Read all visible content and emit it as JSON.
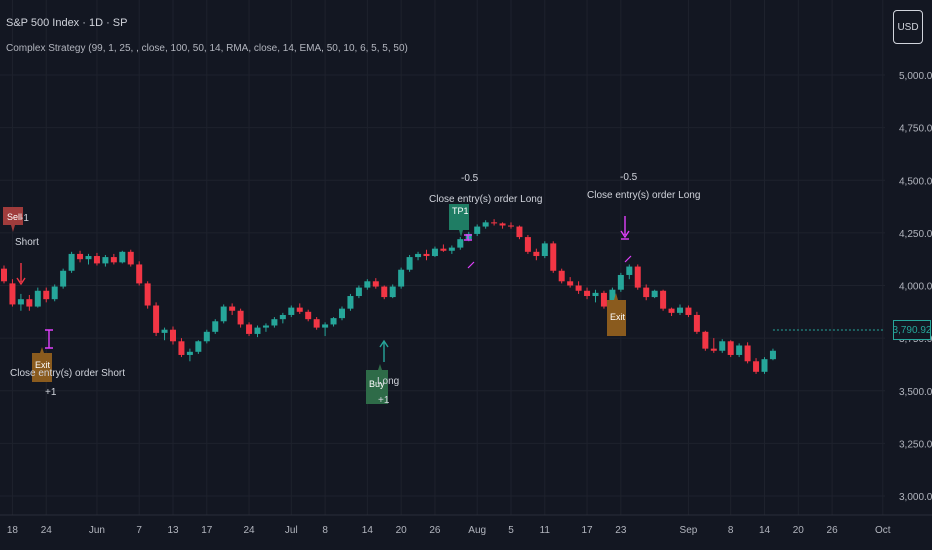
{
  "header": {
    "title": "S&P 500 Index · 1D · SP",
    "strategy": "Complex Strategy (99, 1, 25, , close, 100, 50, 14, RMA, close, 14, EMA, 50, 10, 6, 5, 5, 50)"
  },
  "currency_button": "USD",
  "last_price": "3,790.92",
  "colors": {
    "up": "#26a69a",
    "down": "#f23645",
    "background": "#131722",
    "grid": "#1e222d",
    "signal": "#e040fb"
  },
  "chart_data": {
    "type": "candlestick",
    "ylim": [
      2950,
      5300
    ],
    "y_ticks": [
      {
        "value": 3000,
        "label": "3,000.00"
      },
      {
        "value": 3250,
        "label": "3,250.00"
      },
      {
        "value": 3500,
        "label": "3,500.00"
      },
      {
        "value": 3750,
        "label": "3,750.00"
      },
      {
        "value": 4000,
        "label": "4,000.00"
      },
      {
        "value": 4250,
        "label": "4,250.00"
      },
      {
        "value": 4500,
        "label": "4,500.00"
      },
      {
        "value": 4750,
        "label": "4,750.00"
      },
      {
        "value": 5000,
        "label": "5,000.00"
      }
    ],
    "x_ticks": [
      {
        "index": 1,
        "label": "18"
      },
      {
        "index": 5,
        "label": "24"
      },
      {
        "index": 11,
        "label": "Jun"
      },
      {
        "index": 16,
        "label": "7"
      },
      {
        "index": 20,
        "label": "13"
      },
      {
        "index": 24,
        "label": "17"
      },
      {
        "index": 29,
        "label": "24"
      },
      {
        "index": 34,
        "label": "Jul"
      },
      {
        "index": 38,
        "label": "8"
      },
      {
        "index": 43,
        "label": "14"
      },
      {
        "index": 47,
        "label": "20"
      },
      {
        "index": 51,
        "label": "26"
      },
      {
        "index": 56,
        "label": "Aug"
      },
      {
        "index": 60,
        "label": "5"
      },
      {
        "index": 64,
        "label": "11"
      },
      {
        "index": 69,
        "label": "17"
      },
      {
        "index": 73,
        "label": "23"
      },
      {
        "index": 81,
        "label": "Sep"
      },
      {
        "index": 86,
        "label": "8"
      },
      {
        "index": 90,
        "label": "14"
      },
      {
        "index": 94,
        "label": "20"
      },
      {
        "index": 98,
        "label": "26"
      },
      {
        "index": 104,
        "label": "Oct"
      }
    ],
    "candles": [
      [
        4080,
        4095,
        4010,
        4020
      ],
      [
        4010,
        4030,
        3900,
        3910
      ],
      [
        3910,
        3960,
        3880,
        3935
      ],
      [
        3935,
        3955,
        3880,
        3900
      ],
      [
        3900,
        3990,
        3895,
        3975
      ],
      [
        3975,
        3990,
        3920,
        3935
      ],
      [
        3935,
        4005,
        3925,
        3995
      ],
      [
        3995,
        4080,
        3985,
        4070
      ],
      [
        4070,
        4160,
        4060,
        4150
      ],
      [
        4150,
        4165,
        4110,
        4125
      ],
      [
        4125,
        4150,
        4100,
        4140
      ],
      [
        4140,
        4155,
        4095,
        4105
      ],
      [
        4105,
        4145,
        4090,
        4135
      ],
      [
        4135,
        4150,
        4100,
        4110
      ],
      [
        4110,
        4165,
        4105,
        4160
      ],
      [
        4160,
        4170,
        4090,
        4100
      ],
      [
        4100,
        4115,
        4000,
        4010
      ],
      [
        4010,
        4020,
        3890,
        3905
      ],
      [
        3905,
        3920,
        3760,
        3775
      ],
      [
        3775,
        3800,
        3740,
        3790
      ],
      [
        3790,
        3805,
        3720,
        3735
      ],
      [
        3735,
        3750,
        3660,
        3670
      ],
      [
        3670,
        3700,
        3640,
        3685
      ],
      [
        3685,
        3740,
        3675,
        3735
      ],
      [
        3735,
        3790,
        3725,
        3780
      ],
      [
        3780,
        3840,
        3770,
        3830
      ],
      [
        3830,
        3910,
        3820,
        3900
      ],
      [
        3900,
        3915,
        3860,
        3880
      ],
      [
        3880,
        3890,
        3800,
        3815
      ],
      [
        3815,
        3825,
        3760,
        3770
      ],
      [
        3770,
        3810,
        3755,
        3800
      ],
      [
        3800,
        3820,
        3780,
        3810
      ],
      [
        3810,
        3850,
        3800,
        3840
      ],
      [
        3840,
        3870,
        3820,
        3860
      ],
      [
        3860,
        3905,
        3850,
        3895
      ],
      [
        3895,
        3915,
        3865,
        3875
      ],
      [
        3875,
        3885,
        3830,
        3840
      ],
      [
        3840,
        3850,
        3790,
        3800
      ],
      [
        3800,
        3825,
        3760,
        3815
      ],
      [
        3815,
        3850,
        3805,
        3845
      ],
      [
        3845,
        3900,
        3835,
        3890
      ],
      [
        3890,
        3960,
        3880,
        3950
      ],
      [
        3950,
        4000,
        3940,
        3990
      ],
      [
        3990,
        4030,
        3980,
        4020
      ],
      [
        4020,
        4035,
        3985,
        3995
      ],
      [
        3995,
        4000,
        3935,
        3945
      ],
      [
        3945,
        4005,
        3940,
        3995
      ],
      [
        3995,
        4085,
        3985,
        4075
      ],
      [
        4075,
        4145,
        4065,
        4135
      ],
      [
        4135,
        4160,
        4120,
        4150
      ],
      [
        4150,
        4170,
        4120,
        4140
      ],
      [
        4140,
        4185,
        4135,
        4175
      ],
      [
        4175,
        4195,
        4160,
        4165
      ],
      [
        4165,
        4190,
        4150,
        4180
      ],
      [
        4180,
        4230,
        4170,
        4220
      ],
      [
        4220,
        4255,
        4210,
        4245
      ],
      [
        4245,
        4290,
        4235,
        4280
      ],
      [
        4280,
        4310,
        4270,
        4300
      ],
      [
        4300,
        4315,
        4285,
        4295
      ],
      [
        4295,
        4300,
        4270,
        4285
      ],
      [
        4285,
        4300,
        4270,
        4280
      ],
      [
        4280,
        4285,
        4220,
        4230
      ],
      [
        4230,
        4240,
        4150,
        4160
      ],
      [
        4160,
        4175,
        4120,
        4140
      ],
      [
        4140,
        4210,
        4130,
        4200
      ],
      [
        4200,
        4210,
        4060,
        4070
      ],
      [
        4070,
        4080,
        4010,
        4020
      ],
      [
        4020,
        4040,
        3990,
        4000
      ],
      [
        4000,
        4020,
        3960,
        3975
      ],
      [
        3975,
        3990,
        3935,
        3950
      ],
      [
        3950,
        3980,
        3920,
        3965
      ],
      [
        3965,
        3975,
        3890,
        3900
      ],
      [
        3900,
        3990,
        3890,
        3980
      ],
      [
        3980,
        4060,
        3970,
        4050
      ],
      [
        4050,
        4100,
        4030,
        4090
      ],
      [
        4090,
        4100,
        3980,
        3990
      ],
      [
        3990,
        4005,
        3930,
        3945
      ],
      [
        3945,
        3980,
        3940,
        3975
      ],
      [
        3975,
        3980,
        3880,
        3890
      ],
      [
        3890,
        3895,
        3855,
        3870
      ],
      [
        3870,
        3910,
        3860,
        3895
      ],
      [
        3895,
        3905,
        3850,
        3860
      ],
      [
        3860,
        3875,
        3770,
        3780
      ],
      [
        3780,
        3785,
        3690,
        3700
      ],
      [
        3700,
        3750,
        3680,
        3690
      ],
      [
        3690,
        3745,
        3680,
        3735
      ],
      [
        3735,
        3740,
        3660,
        3670
      ],
      [
        3670,
        3725,
        3660,
        3715
      ],
      [
        3715,
        3730,
        3630,
        3640
      ],
      [
        3640,
        3655,
        3580,
        3590
      ],
      [
        3590,
        3660,
        3580,
        3650
      ],
      [
        3650,
        3700,
        3645,
        3690
      ]
    ]
  },
  "annotations": {
    "sell": {
      "label": "Sell",
      "sub": "Short",
      "value": "-1"
    },
    "exit_short": {
      "label": "Exit",
      "text": "Close entry(s) order Short",
      "value": "+1"
    },
    "buy": {
      "label": "Buy",
      "sub": "Long",
      "value": "+1"
    },
    "tp1": {
      "label": "TP1",
      "text": "Close entry(s) order Long",
      "value": "-0.5"
    },
    "exit_long": {
      "label": "Exit",
      "text": "Close entry(s) order Long",
      "value": "-0.5"
    }
  }
}
